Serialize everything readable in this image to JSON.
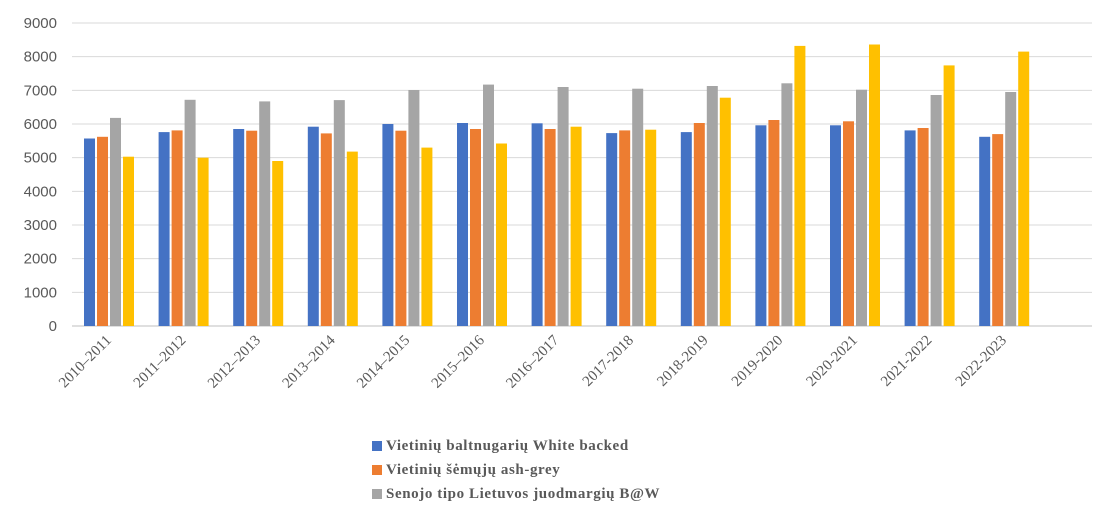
{
  "chart_data": {
    "type": "bar",
    "categories": [
      "2010–2011",
      "2011–2012",
      "2012–2013",
      "2013–2014",
      "2014–2015",
      "2015–2016",
      "2016–2017",
      "2017-2018",
      "2018-2019",
      "2019-2020",
      "2020-2021",
      "2021-2022",
      "2022-2023"
    ],
    "series": [
      {
        "name": "Vietinių baltnugarių White backed",
        "color": "#4472C4",
        "values": [
          5570,
          5760,
          5850,
          5920,
          6000,
          6030,
          6020,
          5730,
          5760,
          5960,
          5960,
          5810,
          5620
        ],
        "legend": true
      },
      {
        "name": "Vietinių šėmųjų ash-grey",
        "color": "#ED7D31",
        "values": [
          5620,
          5810,
          5800,
          5720,
          5800,
          5850,
          5850,
          5810,
          6030,
          6120,
          6080,
          5880,
          5700
        ],
        "legend": true
      },
      {
        "name": "Senojo tipo Lietuvos juodmargių B@W",
        "color": "#A5A5A5",
        "values": [
          6180,
          6720,
          6670,
          6710,
          7010,
          7170,
          7100,
          7050,
          7130,
          7210,
          7020,
          6860,
          6950
        ],
        "legend": true
      },
      {
        "name": "",
        "color": "#FFC000",
        "values": [
          5030,
          5000,
          4900,
          5180,
          5300,
          5420,
          5920,
          5830,
          6780,
          8320,
          8360,
          7740,
          8150
        ],
        "legend": false
      }
    ],
    "ylim": [
      0,
      9000
    ],
    "yticks": [
      0,
      1000,
      2000,
      3000,
      4000,
      5000,
      6000,
      7000,
      8000,
      9000
    ],
    "grid": true,
    "legend_position": "bottom"
  }
}
